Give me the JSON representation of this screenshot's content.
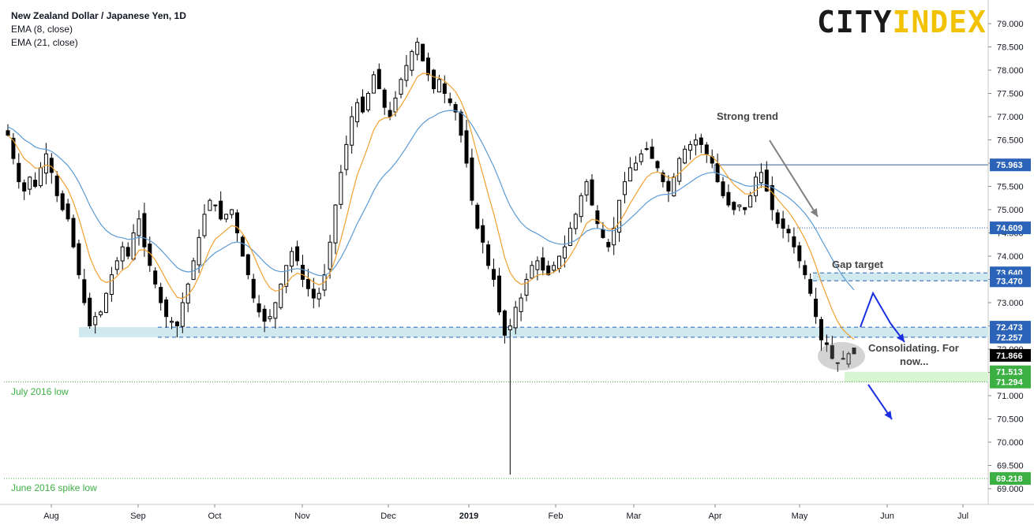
{
  "chart_data": {
    "type": "candlestick",
    "title": "New Zealand Dollar / Japanese Yen, 1D",
    "indicators": [
      "EMA (8, close)",
      "EMA (21, close)"
    ],
    "logo": {
      "part1": "CITY",
      "part2": "INDEX"
    },
    "x_tick_labels": [
      "Aug",
      "Sep",
      "Oct",
      "Nov",
      "Dec",
      "2019",
      "Feb",
      "Mar",
      "Apr",
      "May",
      "Jun",
      "Jul"
    ],
    "y_tick_labels": [
      "79.000",
      "78.500",
      "78.000",
      "77.500",
      "77.000",
      "76.500",
      "76.000",
      "75.500",
      "75.000",
      "74.500",
      "74.000",
      "73.500",
      "73.000",
      "72.500",
      "72.000",
      "71.500",
      "71.000",
      "70.500",
      "70.000",
      "69.500",
      "69.000"
    ],
    "ylim": [
      68.8,
      79.2
    ],
    "colors": {
      "candle": "#000000",
      "ema8": "#f0a030",
      "ema21": "#5b9bd5",
      "zone_blue": "#cfe9ef",
      "zone_green": "#d6f5d0",
      "label_blue": "#2a63b8",
      "label_green": "#3cb043",
      "label_black": "#000000",
      "arrow_blue": "#1a2fe0",
      "arrow_grey": "#808080",
      "green_text": "#3cb043"
    },
    "price_levels": [
      {
        "value": 75.963,
        "label": "75.963",
        "kind": "blue"
      },
      {
        "value": 74.609,
        "label": "74.609",
        "kind": "blue"
      },
      {
        "value": 73.64,
        "label": "73.640",
        "kind": "blue"
      },
      {
        "value": 73.47,
        "label": "73.470",
        "kind": "blue"
      },
      {
        "value": 72.473,
        "label": "72.473",
        "kind": "blue"
      },
      {
        "value": 72.257,
        "label": "72.257",
        "kind": "blue"
      },
      {
        "value": 71.866,
        "label": "71.866",
        "kind": "black"
      },
      {
        "value": 71.513,
        "label": "71.513",
        "kind": "green"
      },
      {
        "value": 71.294,
        "label": "71.294",
        "kind": "green"
      },
      {
        "value": 69.218,
        "label": "69.218",
        "kind": "green"
      }
    ],
    "annotations": {
      "strong_trend": "Strong trend",
      "gap_target": "Gap target",
      "consolidating_1": "Consolidating. For",
      "consolidating_2": "now...",
      "july_low": "July 2016 low",
      "june_low": "June 2016 spike low"
    },
    "series": [
      {
        "name": "NZD/JPY",
        "approx_close_path": [
          76.6,
          76.1,
          75.6,
          75.4,
          75.7,
          75.5,
          75.9,
          76.2,
          75.8,
          75.3,
          75.0,
          74.8,
          74.2,
          73.6,
          73.0,
          72.5,
          72.7,
          72.8,
          73.2,
          73.6,
          73.9,
          74.2,
          74.0,
          74.5,
          74.8,
          74.2,
          73.8,
          73.4,
          73.0,
          72.7,
          72.6,
          72.5,
          73.0,
          73.4,
          73.9,
          74.4,
          74.9,
          75.2,
          75.1,
          74.8,
          74.9,
          75.0,
          74.5,
          74.0,
          73.6,
          73.1,
          72.8,
          72.6,
          72.7,
          73.0,
          73.4,
          73.8,
          74.1,
          73.9,
          73.5,
          73.3,
          73.1,
          73.2,
          73.6,
          74.3,
          75.1,
          75.8,
          76.4,
          77.0,
          77.3,
          77.1,
          77.5,
          77.9,
          77.6,
          77.2,
          77.0,
          77.4,
          77.8,
          78.1,
          78.4,
          78.6,
          78.2,
          77.9,
          77.6,
          77.8,
          77.5,
          77.3,
          77.1,
          76.6,
          76.0,
          75.2,
          74.6,
          74.3,
          73.8,
          73.5,
          72.8,
          72.3,
          72.5,
          72.9,
          73.1,
          73.5,
          73.8,
          73.9,
          73.7,
          73.6,
          73.8,
          74.0,
          74.2,
          74.6,
          74.9,
          75.3,
          75.6,
          75.1,
          74.7,
          74.4,
          74.2,
          74.6,
          75.2,
          75.6,
          75.9,
          76.0,
          76.2,
          76.3,
          76.1,
          75.9,
          75.6,
          75.4,
          75.7,
          76.1,
          76.3,
          76.4,
          76.5,
          76.4,
          76.2,
          76.0,
          75.6,
          75.3,
          75.1,
          75.0,
          75.1,
          75.0,
          75.3,
          75.7,
          75.8,
          75.4,
          75.0,
          74.7,
          74.6,
          74.5,
          74.2,
          73.9,
          73.6,
          73.2,
          72.7,
          72.2,
          72.1,
          71.8,
          71.7,
          71.8,
          71.9,
          71.9
        ]
      }
    ]
  }
}
